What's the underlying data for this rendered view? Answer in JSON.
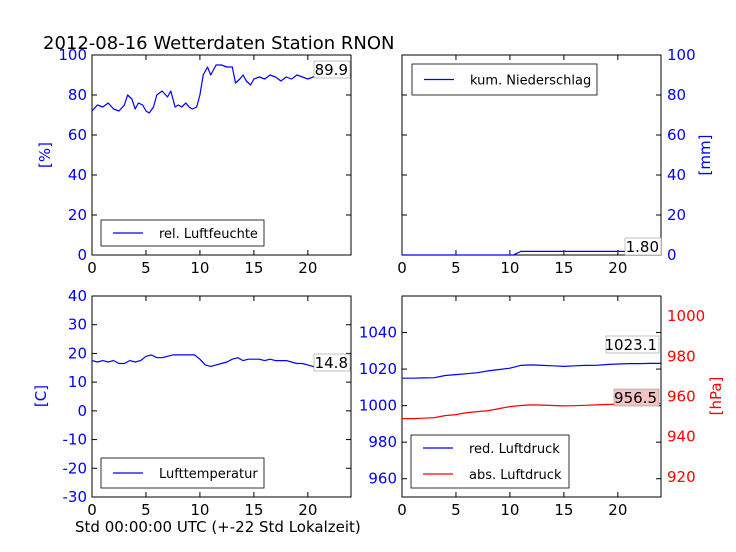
{
  "figure_title": "2012-08-16 Wetterdaten Station RNON",
  "bottom_label": "Std 00:00:00 UTC (+-22 Std Lokalzeit)",
  "colors": {
    "blue": "#0000ff",
    "red": "#ff0000",
    "black": "#000000",
    "redbox": "#f4c2c2"
  },
  "chart_data": [
    {
      "id": "humidity",
      "type": "line",
      "ylabel": "[%]",
      "xlim": [
        0,
        24
      ],
      "ylim": [
        0,
        100
      ],
      "xticks": [
        0,
        5,
        10,
        15,
        20
      ],
      "yticks": [
        0,
        20,
        40,
        60,
        80,
        100
      ],
      "tick_color": "#0000ff",
      "legend_position": "lower-left",
      "annotation": "89.9",
      "series": [
        {
          "name": "rel. Luftfeuchte",
          "color": "#0000ff",
          "x": [
            0,
            0.5,
            1,
            1.5,
            2,
            2.5,
            3,
            3.3,
            3.7,
            4,
            4.3,
            4.7,
            5,
            5.3,
            5.7,
            6,
            6.5,
            7,
            7.3,
            7.7,
            8,
            8.3,
            8.7,
            9,
            9.3,
            9.7,
            10,
            10.3,
            10.7,
            11,
            11.5,
            12,
            12.5,
            13,
            13.3,
            13.7,
            14,
            14.3,
            14.7,
            15,
            15.5,
            16,
            16.5,
            17,
            17.5,
            18,
            18.5,
            19,
            19.5,
            20,
            20.5,
            21,
            21.5,
            22,
            22.5,
            23,
            23.5,
            24
          ],
          "values": [
            72,
            75,
            74,
            76,
            73,
            72,
            75,
            80,
            78,
            73,
            76,
            75,
            72,
            71,
            74,
            80,
            82,
            79,
            82,
            74,
            75,
            74,
            76,
            74,
            73,
            74,
            80,
            90,
            94,
            90,
            95,
            95,
            94,
            94,
            86,
            88,
            90,
            87,
            85,
            88,
            89,
            88,
            90,
            89,
            87,
            89,
            88,
            90,
            89,
            88,
            89,
            90,
            90,
            89,
            90,
            90,
            90,
            90
          ]
        }
      ]
    },
    {
      "id": "precip",
      "type": "line",
      "ylabel": "[mm]",
      "xlim": [
        0,
        24
      ],
      "ylim": [
        0,
        100
      ],
      "xticks": [
        0,
        5,
        10,
        15,
        20
      ],
      "yticks": [
        0,
        20,
        40,
        60,
        80,
        100
      ],
      "tick_color": "#0000ff",
      "y_axis_side": "right",
      "legend_position": "upper-left",
      "annotation": "1.80",
      "series": [
        {
          "name": "kum. Niederschlag",
          "color": "#0000ff",
          "x": [
            0,
            10.3,
            10.8,
            11,
            24
          ],
          "values": [
            0,
            0,
            1.2,
            1.8,
            1.8
          ]
        }
      ]
    },
    {
      "id": "temperature",
      "type": "line",
      "ylabel": "[C]",
      "xlim": [
        0,
        24
      ],
      "ylim": [
        -30,
        40
      ],
      "xticks": [
        0,
        5,
        10,
        15,
        20
      ],
      "yticks": [
        -30,
        -20,
        -10,
        0,
        10,
        20,
        30,
        40
      ],
      "tick_color": "#0000ff",
      "legend_position": "lower-left",
      "annotation": "14.8",
      "series": [
        {
          "name": "Lufttemperatur",
          "color": "#0000ff",
          "x": [
            0,
            0.5,
            1,
            1.5,
            2,
            2.5,
            3,
            3.5,
            4,
            4.5,
            5,
            5.5,
            6,
            6.5,
            7,
            7.5,
            8,
            8.5,
            9,
            9.5,
            10,
            10.5,
            11,
            11.5,
            12,
            12.5,
            13,
            13.5,
            14,
            14.5,
            15,
            15.5,
            16,
            16.5,
            17,
            17.5,
            18,
            18.5,
            19,
            19.5,
            20,
            20.5,
            21,
            21.5,
            22,
            22.5,
            23,
            23.5,
            24
          ],
          "values": [
            17.5,
            17,
            17.5,
            17,
            17.5,
            16.5,
            16.5,
            17.5,
            17,
            17.5,
            19,
            19.5,
            18.5,
            18.5,
            19,
            19.5,
            19.5,
            19.5,
            19.5,
            19.5,
            18,
            16,
            15.5,
            16,
            16.5,
            17,
            18,
            18.5,
            17.5,
            18,
            18,
            18,
            17.5,
            18,
            17.5,
            17.5,
            17.5,
            17,
            16.5,
            16.5,
            16,
            15.5,
            15,
            15,
            14.8,
            14.8,
            14.8,
            14.8,
            14.8
          ]
        }
      ]
    },
    {
      "id": "pressure",
      "type": "line",
      "ylabel": "[hPa]",
      "xlim": [
        0,
        24
      ],
      "ylim": [
        950,
        1060
      ],
      "xticks": [
        0,
        5,
        10,
        15,
        20
      ],
      "yticks": [
        960,
        980,
        1000,
        1020,
        1040
      ],
      "tick_color": "#0000ff",
      "right_ylim": [
        910,
        1010
      ],
      "right_yticks": [
        920,
        940,
        960,
        980,
        1000
      ],
      "right_tick_color": "#ff0000",
      "legend_position": "lower-left",
      "annotations": [
        "1023.1",
        "956.5"
      ],
      "series": [
        {
          "name": "red. Luftdruck",
          "color": "#0000ff",
          "axis": "left",
          "x": [
            0,
            1,
            2,
            3,
            4,
            5,
            6,
            7,
            8,
            9,
            10,
            11,
            12,
            13,
            14,
            15,
            16,
            17,
            18,
            19,
            20,
            21,
            22,
            23,
            24
          ],
          "values": [
            1015,
            1015,
            1015.2,
            1015.3,
            1016.5,
            1017,
            1017.5,
            1018,
            1019,
            1019.8,
            1020.5,
            1022,
            1022.3,
            1022,
            1021.8,
            1021.5,
            1021.8,
            1022,
            1022.1,
            1022.5,
            1022.8,
            1023,
            1023,
            1023.1,
            1023.1
          ]
        },
        {
          "name": "abs. Luftdruck",
          "color": "#ff0000",
          "axis": "right",
          "x": [
            0,
            1,
            2,
            3,
            4,
            5,
            6,
            7,
            8,
            9,
            10,
            11,
            12,
            13,
            14,
            15,
            16,
            17,
            18,
            19,
            20,
            21,
            22,
            23,
            24
          ],
          "values": [
            949,
            949,
            949.2,
            949.5,
            950.5,
            951,
            952,
            952.5,
            953,
            954,
            955,
            955.5,
            955.8,
            955.7,
            955.5,
            955.3,
            955.4,
            955.6,
            955.8,
            956,
            956.2,
            956.3,
            956.4,
            956.5,
            956.5
          ]
        }
      ]
    }
  ]
}
